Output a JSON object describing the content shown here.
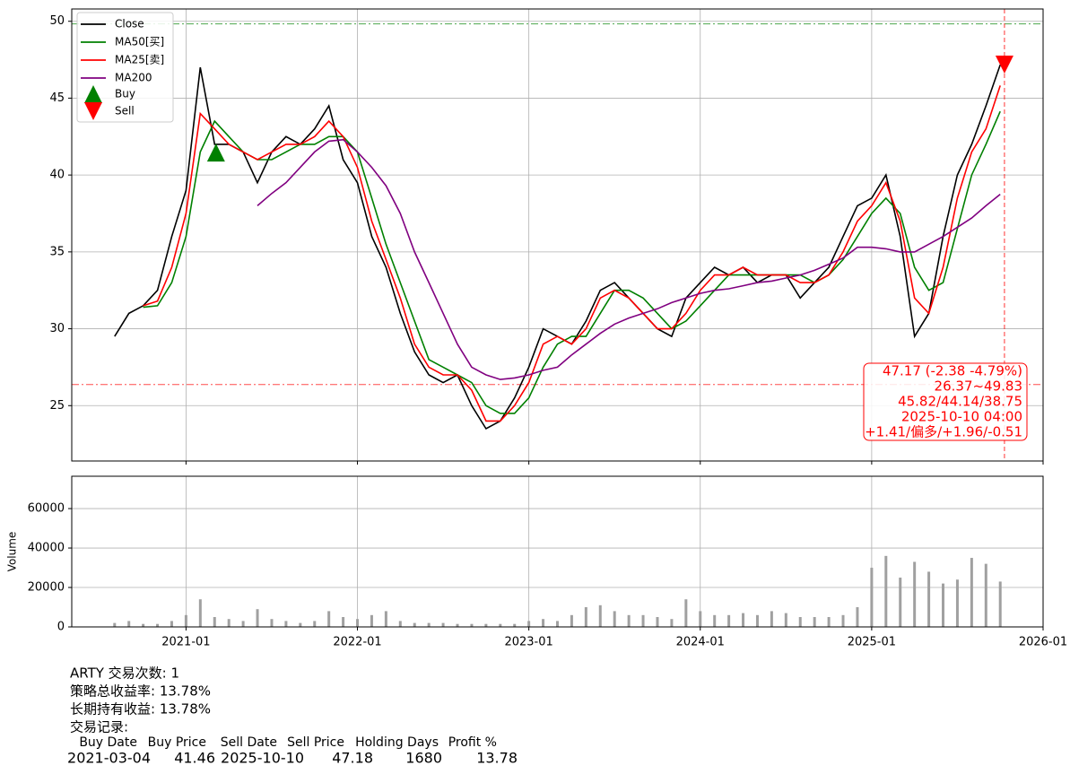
{
  "chart_data": [
    {
      "type": "line",
      "x": [
        "2020-08",
        "2020-09",
        "2020-10",
        "2020-11",
        "2020-12",
        "2021-01",
        "2021-02",
        "2021-03",
        "2021-04",
        "2021-05",
        "2021-06",
        "2021-07",
        "2021-08",
        "2021-09",
        "2021-10",
        "2021-11",
        "2021-12",
        "2022-01",
        "2022-02",
        "2022-03",
        "2022-04",
        "2022-05",
        "2022-06",
        "2022-07",
        "2022-08",
        "2022-09",
        "2022-10",
        "2022-11",
        "2022-12",
        "2023-01",
        "2023-02",
        "2023-03",
        "2023-04",
        "2023-05",
        "2023-06",
        "2023-07",
        "2023-08",
        "2023-09",
        "2023-10",
        "2023-11",
        "2023-12",
        "2024-01",
        "2024-02",
        "2024-03",
        "2024-04",
        "2024-05",
        "2024-06",
        "2024-07",
        "2024-08",
        "2024-09",
        "2024-10",
        "2024-11",
        "2024-12",
        "2025-01",
        "2025-02",
        "2025-03",
        "2025-04",
        "2025-05",
        "2025-06",
        "2025-07",
        "2025-08",
        "2025-09",
        "2025-10"
      ],
      "series": [
        {
          "name": "Close",
          "color": "#000000",
          "values": [
            29.5,
            31,
            31.5,
            32.5,
            36,
            39,
            47,
            42,
            42,
            41.5,
            39.5,
            41.5,
            42.5,
            42,
            43,
            44.5,
            41,
            39.5,
            36,
            34,
            31,
            28.5,
            27,
            26.5,
            27,
            25,
            23.5,
            24,
            25.5,
            27.5,
            30,
            29.5,
            29,
            30.5,
            32.5,
            33,
            32,
            31,
            30,
            29.5,
            32,
            33,
            34,
            33.5,
            34,
            33,
            33.5,
            33.5,
            32,
            33,
            34,
            36,
            38,
            38.5,
            40,
            36,
            29.5,
            31,
            36,
            40,
            42,
            44.5,
            47.17
          ]
        },
        {
          "name": "MA50[买]",
          "color": "#008000",
          "values": [
            null,
            null,
            31.4,
            31.5,
            33,
            36,
            41.5,
            43.5,
            42.5,
            41.5,
            41,
            41,
            41.5,
            42,
            42,
            42.5,
            42.5,
            41.5,
            38.5,
            35.5,
            33,
            30.5,
            28,
            27.5,
            27,
            26.5,
            25,
            24.5,
            24.5,
            25.5,
            27.5,
            29,
            29.5,
            29.5,
            31,
            32.5,
            32.5,
            32,
            31,
            30,
            30.5,
            31.5,
            32.5,
            33.5,
            33.5,
            33.5,
            33.5,
            33.5,
            33.5,
            33,
            33.5,
            34.5,
            36,
            37.5,
            38.5,
            37.5,
            34,
            32.5,
            33,
            36.5,
            40,
            42,
            44.14
          ]
        },
        {
          "name": "MA25[卖]",
          "color": "#ff0000",
          "values": [
            null,
            null,
            31.5,
            31.8,
            34,
            37.5,
            44,
            43,
            42,
            41.5,
            41,
            41.5,
            42,
            42,
            42.5,
            43.5,
            42.5,
            40.5,
            37,
            34.5,
            32,
            29,
            27.5,
            27,
            27,
            26,
            24,
            24,
            25,
            26.5,
            29,
            29.5,
            29,
            30,
            32,
            32.5,
            32,
            31,
            30,
            30,
            31,
            32.5,
            33.5,
            33.5,
            34,
            33.5,
            33.5,
            33.5,
            33,
            33,
            33.5,
            35,
            37,
            38,
            39.5,
            37,
            32,
            31,
            34,
            38.5,
            41.5,
            43,
            45.82
          ]
        },
        {
          "name": "MA200",
          "color": "#800080",
          "values": [
            null,
            null,
            null,
            null,
            null,
            null,
            null,
            null,
            null,
            null,
            38,
            38.8,
            39.5,
            40.5,
            41.5,
            42.2,
            42.3,
            41.5,
            40.5,
            39.3,
            37.5,
            35,
            33,
            31,
            29,
            27.5,
            27,
            26.7,
            26.8,
            27,
            27.3,
            27.5,
            28.3,
            29,
            29.7,
            30.3,
            30.7,
            31,
            31.3,
            31.7,
            32,
            32.3,
            32.5,
            32.6,
            32.8,
            33,
            33.1,
            33.3,
            33.5,
            33.8,
            34.2,
            34.6,
            35.3,
            35.3,
            35.2,
            35,
            35,
            35.5,
            36,
            36.6,
            37.2,
            38,
            38.75
          ]
        }
      ],
      "markers": [
        {
          "name": "Buy",
          "x": "2021-03-04",
          "value": 41.46,
          "color": "#008000",
          "shape": "up"
        },
        {
          "name": "Sell",
          "x": "2025-10-10",
          "value": 47.18,
          "color": "#ff0000",
          "shape": "down"
        }
      ],
      "hlines": [
        {
          "value": 49.83,
          "color": "#008000"
        },
        {
          "value": 26.37,
          "color": "#ff0000"
        }
      ],
      "vline": {
        "x": "2025-10-10",
        "color": "#ff0000"
      },
      "annotation": [
        "47.17 (-2.38 -4.79%)",
        "26.37~49.83",
        "45.82/44.14/38.75",
        "2025-10-10 04:00",
        "+1.41/偏多/+1.96/-0.51"
      ],
      "xlim": [
        "2020-05",
        "2026-01"
      ],
      "ylim": [
        21.4,
        50.8
      ],
      "yticks": [
        25,
        30,
        35,
        40,
        45,
        50
      ],
      "grid": true,
      "legend": "upper left"
    },
    {
      "type": "bar",
      "y_label": "Volume",
      "x": [
        "2020-08",
        "2020-09",
        "2020-10",
        "2020-11",
        "2020-12",
        "2021-01",
        "2021-02",
        "2021-03",
        "2021-04",
        "2021-05",
        "2021-06",
        "2021-07",
        "2021-08",
        "2021-09",
        "2021-10",
        "2021-11",
        "2021-12",
        "2022-01",
        "2022-02",
        "2022-03",
        "2022-04",
        "2022-05",
        "2022-06",
        "2022-07",
        "2022-08",
        "2022-09",
        "2022-10",
        "2022-11",
        "2022-12",
        "2023-01",
        "2023-02",
        "2023-03",
        "2023-04",
        "2023-05",
        "2023-06",
        "2023-07",
        "2023-08",
        "2023-09",
        "2023-10",
        "2023-11",
        "2023-12",
        "2024-01",
        "2024-02",
        "2024-03",
        "2024-04",
        "2024-05",
        "2024-06",
        "2024-07",
        "2024-08",
        "2024-09",
        "2024-10",
        "2024-11",
        "2024-12",
        "2025-01",
        "2025-02",
        "2025-03",
        "2025-04",
        "2025-05",
        "2025-06",
        "2025-07",
        "2025-08",
        "2025-09",
        "2025-10"
      ],
      "values": [
        2000,
        3000,
        1500,
        1500,
        3000,
        6000,
        14000,
        5000,
        4000,
        3000,
        9000,
        4000,
        3000,
        2000,
        3000,
        8000,
        5000,
        4000,
        6000,
        8000,
        3000,
        2000,
        2000,
        2000,
        1500,
        1500,
        1500,
        1500,
        1500,
        3000,
        4000,
        3000,
        6000,
        10000,
        11000,
        8000,
        6000,
        6000,
        5000,
        4000,
        14000,
        8000,
        6000,
        6000,
        7000,
        6000,
        8000,
        7000,
        5000,
        5000,
        5000,
        6000,
        10000,
        30000,
        36000,
        25000,
        33000,
        28000,
        22000,
        24000,
        35000,
        32000,
        23000
      ],
      "color": "#a0a0a0",
      "xlim": [
        "2020-05",
        "2026-01"
      ],
      "xticks": [
        "2021-01",
        "2022-01",
        "2023-01",
        "2024-01",
        "2025-01",
        "2026-01"
      ],
      "ylim": [
        0,
        76400
      ],
      "yticks": [
        0,
        20000,
        40000,
        60000
      ],
      "grid": true
    }
  ],
  "report": {
    "lines": [
      "ARTY 交易次数: 1",
      "策略总收益率: 13.78%",
      "长期持有收益: 13.78%",
      "交易记录:"
    ],
    "table": {
      "columns": [
        "Buy Date",
        "Buy Price",
        "Sell Date",
        "Sell Price",
        "Holding Days",
        "Profit %"
      ],
      "rows": [
        [
          "2021-03-04",
          "41.46",
          "2025-10-10",
          "47.18",
          "1680",
          "13.78"
        ]
      ]
    }
  }
}
